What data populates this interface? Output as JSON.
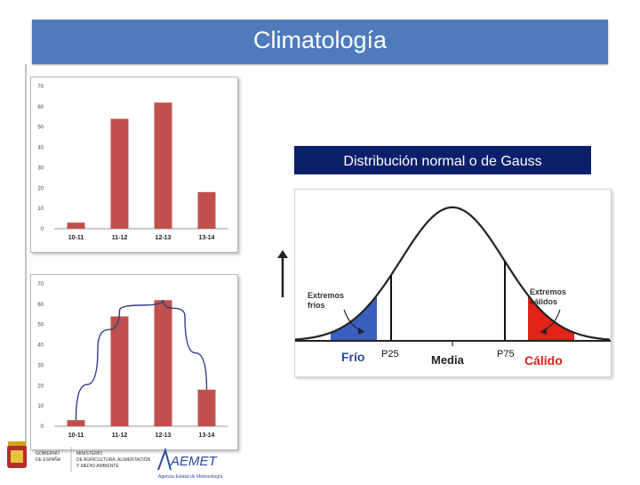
{
  "header": {
    "title": "Climatología"
  },
  "chart_data": [
    {
      "type": "bar",
      "title": "",
      "categories": [
        "10-11",
        "11-12",
        "12-13",
        "13-14"
      ],
      "values": [
        3,
        54,
        62,
        18
      ],
      "ylim": [
        0,
        70
      ],
      "yticks": [
        "0",
        "10",
        "20",
        "30",
        "40",
        "50",
        "60",
        "70"
      ],
      "color": "#c0504d",
      "grid": false
    },
    {
      "type": "bar",
      "title": "",
      "categories": [
        "10-11",
        "11-12",
        "12-13",
        "13-14"
      ],
      "values": [
        3,
        54,
        62,
        18
      ],
      "ylim": [
        0,
        70
      ],
      "yticks": [
        "0",
        "10",
        "20",
        "30",
        "40",
        "50",
        "60",
        "70"
      ],
      "color": "#c0504d",
      "grid": false,
      "overlay_curve": {
        "color": "#2b3f8a",
        "points": [
          [
            0,
            3
          ],
          [
            0.5,
            38
          ],
          [
            1,
            57
          ],
          [
            2,
            62
          ],
          [
            2.5,
            54
          ],
          [
            3,
            18
          ]
        ]
      }
    },
    {
      "type": "normal-distribution",
      "title": "Distribución normal o de Gauss",
      "labels": {
        "cold_extremes": [
          "Extremos",
          "fríos"
        ],
        "warm_extremes": [
          "Extremos",
          "cálidos"
        ],
        "p25": "P25",
        "p75": "P75",
        "mean": "Media",
        "cold": "Frío",
        "warm": "Cálido"
      },
      "colors": {
        "cold": "#3b5fc0",
        "warm": "#e2231a",
        "cold_text": "#2a47a8",
        "warm_text": "#d9221a"
      }
    }
  ],
  "footer": {
    "ministry_left": [
      "GOBIERNO",
      "DE ESPAÑA"
    ],
    "ministry_right": [
      "MINISTERIO",
      "DE AGRICULTURA, ALIMENTACIÓN",
      "Y MEDIO AMBIENTE"
    ],
    "aemet": "AEMET",
    "aemet_sub": "Agencia Estatal de Meteorología"
  }
}
